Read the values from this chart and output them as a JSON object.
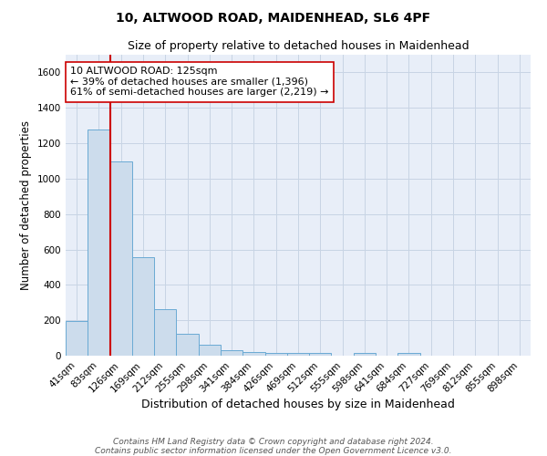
{
  "title": "10, ALTWOOD ROAD, MAIDENHEAD, SL6 4PF",
  "subtitle": "Size of property relative to detached houses in Maidenhead",
  "xlabel": "Distribution of detached houses by size in Maidenhead",
  "ylabel": "Number of detached properties",
  "footnote1": "Contains HM Land Registry data © Crown copyright and database right 2024.",
  "footnote2": "Contains public sector information licensed under the Open Government Licence v3.0.",
  "bar_color": "#ccdcec",
  "bar_edge_color": "#6aaad4",
  "grid_color": "#c8d4e4",
  "background_color": "#e8eef8",
  "bin_labels": [
    "41sqm",
    "83sqm",
    "126sqm",
    "169sqm",
    "212sqm",
    "255sqm",
    "298sqm",
    "341sqm",
    "384sqm",
    "426sqm",
    "469sqm",
    "512sqm",
    "555sqm",
    "598sqm",
    "641sqm",
    "684sqm",
    "727sqm",
    "769sqm",
    "812sqm",
    "855sqm",
    "898sqm"
  ],
  "bin_values": [
    198,
    1280,
    1095,
    555,
    265,
    125,
    62,
    30,
    20,
    14,
    14,
    14,
    0,
    14,
    0,
    18,
    0,
    0,
    0,
    0,
    0
  ],
  "ylim": [
    0,
    1700
  ],
  "yticks": [
    0,
    200,
    400,
    600,
    800,
    1000,
    1200,
    1400,
    1600
  ],
  "red_line_x": 1.5,
  "annotation_line1": "10 ALTWOOD ROAD: 125sqm",
  "annotation_line2": "← 39% of detached houses are smaller (1,396)",
  "annotation_line3": "61% of semi-detached houses are larger (2,219) →",
  "red_color": "#cc0000",
  "annotation_box_facecolor": "#ffffff",
  "title_fontsize": 10,
  "subtitle_fontsize": 9,
  "annotation_fontsize": 8,
  "tick_fontsize": 7.5,
  "ylabel_fontsize": 8.5,
  "xlabel_fontsize": 9,
  "footnote_fontsize": 6.5
}
